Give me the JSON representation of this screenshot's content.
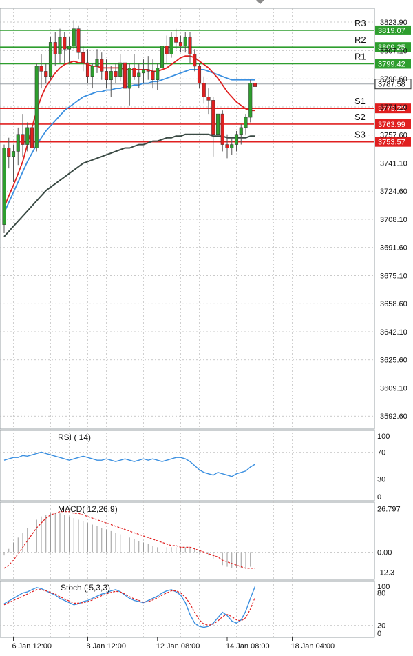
{
  "chart_data": [
    {
      "type": "candlestick",
      "ylim": [
        3585.0,
        3832.0
      ],
      "y_ticks": [
        "3823.90",
        "3807.10",
        "3790.60",
        "3774.10",
        "3757.60",
        "3741.10",
        "3724.60",
        "3708.10",
        "3691.60",
        "3675.10",
        "3658.60",
        "3642.10",
        "3625.60",
        "3609.10",
        "3592.60"
      ],
      "x_ticks": [
        {
          "label": "6 Jan 12:00",
          "index": 2
        },
        {
          "label": "8 Jan 12:00",
          "index": 18
        },
        {
          "label": "12 Jan 08:00",
          "index": 33
        },
        {
          "label": "14 Jan 08:00",
          "index": 48
        },
        {
          "label": "18 Jan 04:00",
          "index": 62
        }
      ],
      "levels": [
        {
          "label": "R3",
          "price": "3819.07",
          "value": 3819.07,
          "color": "#2e9e2e"
        },
        {
          "label": "R2",
          "price": "3809.25",
          "value": 3809.25,
          "color": "#2e9e2e"
        },
        {
          "label": "R1",
          "price": "3799.42",
          "value": 3799.42,
          "color": "#2e9e2e"
        },
        {
          "label": "S1",
          "price": "3773.22",
          "value": 3773.22,
          "color": "#e02020"
        },
        {
          "label": "S2",
          "price": "3763.99",
          "value": 3763.99,
          "color": "#e02020"
        },
        {
          "label": "S3",
          "price": "3753.57",
          "value": 3753.57,
          "color": "#e02020"
        }
      ],
      "current_price": {
        "price": "3787.58",
        "value": 3787.58
      },
      "candles": [
        [
          3705,
          3752,
          3700,
          3750
        ],
        [
          3750,
          3756,
          3738,
          3745
        ],
        [
          3745,
          3752,
          3730,
          3748
        ],
        [
          3748,
          3762,
          3740,
          3758
        ],
        [
          3758,
          3770,
          3745,
          3752
        ],
        [
          3752,
          3765,
          3748,
          3762
        ],
        [
          3762,
          3768,
          3745,
          3750
        ],
        [
          3750,
          3800,
          3748,
          3798
        ],
        [
          3798,
          3805,
          3785,
          3795
        ],
        [
          3795,
          3800,
          3788,
          3792
        ],
        [
          3792,
          3815,
          3790,
          3812
        ],
        [
          3812,
          3818,
          3798,
          3805
        ],
        [
          3805,
          3820,
          3800,
          3815
        ],
        [
          3815,
          3818,
          3800,
          3808
        ],
        [
          3808,
          3815,
          3800,
          3810
        ],
        [
          3810,
          3825,
          3808,
          3820
        ],
        [
          3820,
          3822,
          3802,
          3806
        ],
        [
          3806,
          3810,
          3795,
          3800
        ],
        [
          3800,
          3808,
          3788,
          3792
        ],
        [
          3792,
          3800,
          3785,
          3798
        ],
        [
          3798,
          3808,
          3794,
          3802
        ],
        [
          3802,
          3806,
          3790,
          3795
        ],
        [
          3795,
          3802,
          3785,
          3790
        ],
        [
          3790,
          3798,
          3780,
          3795
        ],
        [
          3795,
          3800,
          3788,
          3792
        ],
        [
          3792,
          3805,
          3789,
          3800
        ],
        [
          3800,
          3805,
          3780,
          3785
        ],
        [
          3785,
          3800,
          3775,
          3797
        ],
        [
          3797,
          3805,
          3790,
          3792
        ],
        [
          3792,
          3800,
          3785,
          3794
        ],
        [
          3794,
          3802,
          3788,
          3796
        ],
        [
          3796,
          3804,
          3790,
          3795
        ],
        [
          3795,
          3802,
          3785,
          3790
        ],
        [
          3790,
          3800,
          3784,
          3797
        ],
        [
          3797,
          3812,
          3794,
          3810
        ],
        [
          3810,
          3816,
          3800,
          3805
        ],
        [
          3805,
          3818,
          3803,
          3815
        ],
        [
          3815,
          3820,
          3808,
          3812
        ],
        [
          3812,
          3816,
          3806,
          3810
        ],
        [
          3810,
          3818,
          3806,
          3815
        ],
        [
          3815,
          3818,
          3800,
          3805
        ],
        [
          3805,
          3808,
          3795,
          3798
        ],
        [
          3798,
          3800,
          3785,
          3788
        ],
        [
          3788,
          3792,
          3776,
          3780
        ],
        [
          3780,
          3785,
          3770,
          3778
        ],
        [
          3778,
          3780,
          3745,
          3758
        ],
        [
          3758,
          3775,
          3750,
          3770
        ],
        [
          3770,
          3772,
          3748,
          3752
        ],
        [
          3752,
          3758,
          3744,
          3750
        ],
        [
          3750,
          3756,
          3746,
          3752
        ],
        [
          3752,
          3760,
          3748,
          3758
        ],
        [
          3758,
          3764,
          3752,
          3762
        ],
        [
          3762,
          3770,
          3758,
          3768
        ],
        [
          3768,
          3790,
          3765,
          3788
        ],
        [
          3788,
          3792,
          3782,
          3786
        ]
      ],
      "ma_fast": [
        3715,
        3722,
        3728,
        3735,
        3742,
        3752,
        3762,
        3772,
        3780,
        3786,
        3790,
        3794,
        3797,
        3799,
        3800,
        3801,
        3800,
        3800,
        3799,
        3798,
        3798,
        3797,
        3797,
        3797,
        3797,
        3797,
        3796,
        3796,
        3796,
        3796,
        3796,
        3796,
        3795,
        3795,
        3796,
        3797,
        3799,
        3801,
        3803,
        3804,
        3804,
        3803,
        3801,
        3799,
        3797,
        3794,
        3791,
        3787,
        3783,
        3780,
        3777,
        3775,
        3773,
        3772,
        3772
      ],
      "ma_mid": [
        3712,
        3718,
        3724,
        3730,
        3736,
        3742,
        3747,
        3752,
        3756,
        3760,
        3763,
        3766,
        3769,
        3772,
        3774,
        3776,
        3778,
        3780,
        3781,
        3782,
        3783,
        3783,
        3784,
        3784,
        3785,
        3785,
        3786,
        3786,
        3787,
        3787,
        3788,
        3788,
        3789,
        3789,
        3790,
        3791,
        3792,
        3793,
        3794,
        3795,
        3796,
        3796,
        3796,
        3796,
        3795,
        3794,
        3793,
        3792,
        3791,
        3790,
        3790,
        3790,
        3790,
        3790,
        3790
      ],
      "ma_slow": [
        3698,
        3701,
        3704,
        3707,
        3710,
        3713,
        3716,
        3719,
        3722,
        3725,
        3727,
        3729,
        3731,
        3733,
        3735,
        3737,
        3739,
        3741,
        3742,
        3743,
        3744,
        3745,
        3746,
        3747,
        3748,
        3749,
        3750,
        3750,
        3751,
        3752,
        3752,
        3753,
        3754,
        3754,
        3755,
        3756,
        3756,
        3757,
        3757,
        3758,
        3758,
        3758,
        3758,
        3758,
        3758,
        3757,
        3757,
        3757,
        3756,
        3756,
        3756,
        3756,
        3756,
        3757,
        3757
      ]
    },
    {
      "type": "line",
      "title": "RSI ( 14)",
      "ylim": [
        0,
        100
      ],
      "y_ticks": [
        "100",
        "70",
        "30",
        "0"
      ],
      "values": [
        58,
        60,
        62,
        62,
        65,
        64,
        66,
        68,
        70,
        68,
        66,
        64,
        62,
        60,
        58,
        60,
        62,
        64,
        62,
        60,
        58,
        58,
        60,
        58,
        56,
        58,
        60,
        58,
        56,
        58,
        60,
        58,
        60,
        58,
        56,
        58,
        60,
        62,
        62,
        60,
        56,
        50,
        44,
        40,
        38,
        36,
        40,
        38,
        36,
        34,
        38,
        40,
        42,
        48,
        52
      ]
    },
    {
      "type": "bar",
      "title": "MACD( 12,26,9)",
      "ylim": [
        -16.0,
        30.0
      ],
      "y_ticks": [
        "26.797",
        "0.00",
        "-12.3"
      ],
      "values": [
        -2,
        2,
        6,
        9,
        12,
        15,
        18,
        20,
        22,
        23,
        24,
        24,
        24,
        23,
        22,
        21,
        20,
        19,
        18,
        17,
        16,
        15,
        14,
        13,
        12,
        11,
        10,
        9,
        8,
        7,
        6,
        5,
        4,
        3,
        3,
        3,
        3,
        3,
        3,
        3,
        3,
        2,
        1,
        0,
        -2,
        -4,
        -6,
        -8,
        -9,
        -10,
        -10,
        -10,
        -10,
        -9,
        -8
      ],
      "signal": [
        -10,
        -8,
        -5,
        -1,
        3,
        7,
        11,
        15,
        18,
        21,
        23,
        24,
        25,
        25,
        25,
        24,
        24,
        23,
        22,
        21,
        20,
        19,
        18,
        17,
        16,
        15,
        14,
        13,
        12,
        11,
        10,
        9,
        8,
        7,
        6,
        5,
        4,
        4,
        3,
        3,
        3,
        2,
        1,
        0,
        -1,
        -2,
        -3,
        -5,
        -6,
        -7,
        -8,
        -9,
        -10,
        -10,
        -10
      ]
    },
    {
      "type": "line",
      "title": "Stoch ( 5,3,3)",
      "ylim": [
        0,
        100
      ],
      "y_ticks": [
        "100",
        "80",
        "20",
        "0"
      ],
      "k": [
        60,
        65,
        70,
        75,
        80,
        82,
        86,
        90,
        88,
        84,
        80,
        76,
        70,
        66,
        62,
        58,
        60,
        64,
        66,
        70,
        74,
        78,
        80,
        84,
        86,
        82,
        76,
        70,
        66,
        64,
        62,
        66,
        70,
        74,
        80,
        84,
        86,
        82,
        76,
        62,
        40,
        24,
        18,
        16,
        18,
        24,
        34,
        44,
        38,
        28,
        24,
        30,
        46,
        70,
        92
      ],
      "d": [
        58,
        62,
        66,
        70,
        74,
        78,
        82,
        86,
        86,
        84,
        81,
        78,
        73,
        69,
        65,
        61,
        61,
        62,
        64,
        67,
        71,
        75,
        78,
        81,
        83,
        82,
        78,
        73,
        69,
        66,
        63,
        64,
        67,
        71,
        76,
        80,
        84,
        84,
        80,
        72,
        60,
        44,
        30,
        22,
        20,
        22,
        28,
        36,
        40,
        36,
        30,
        28,
        34,
        50,
        72
      ]
    }
  ]
}
